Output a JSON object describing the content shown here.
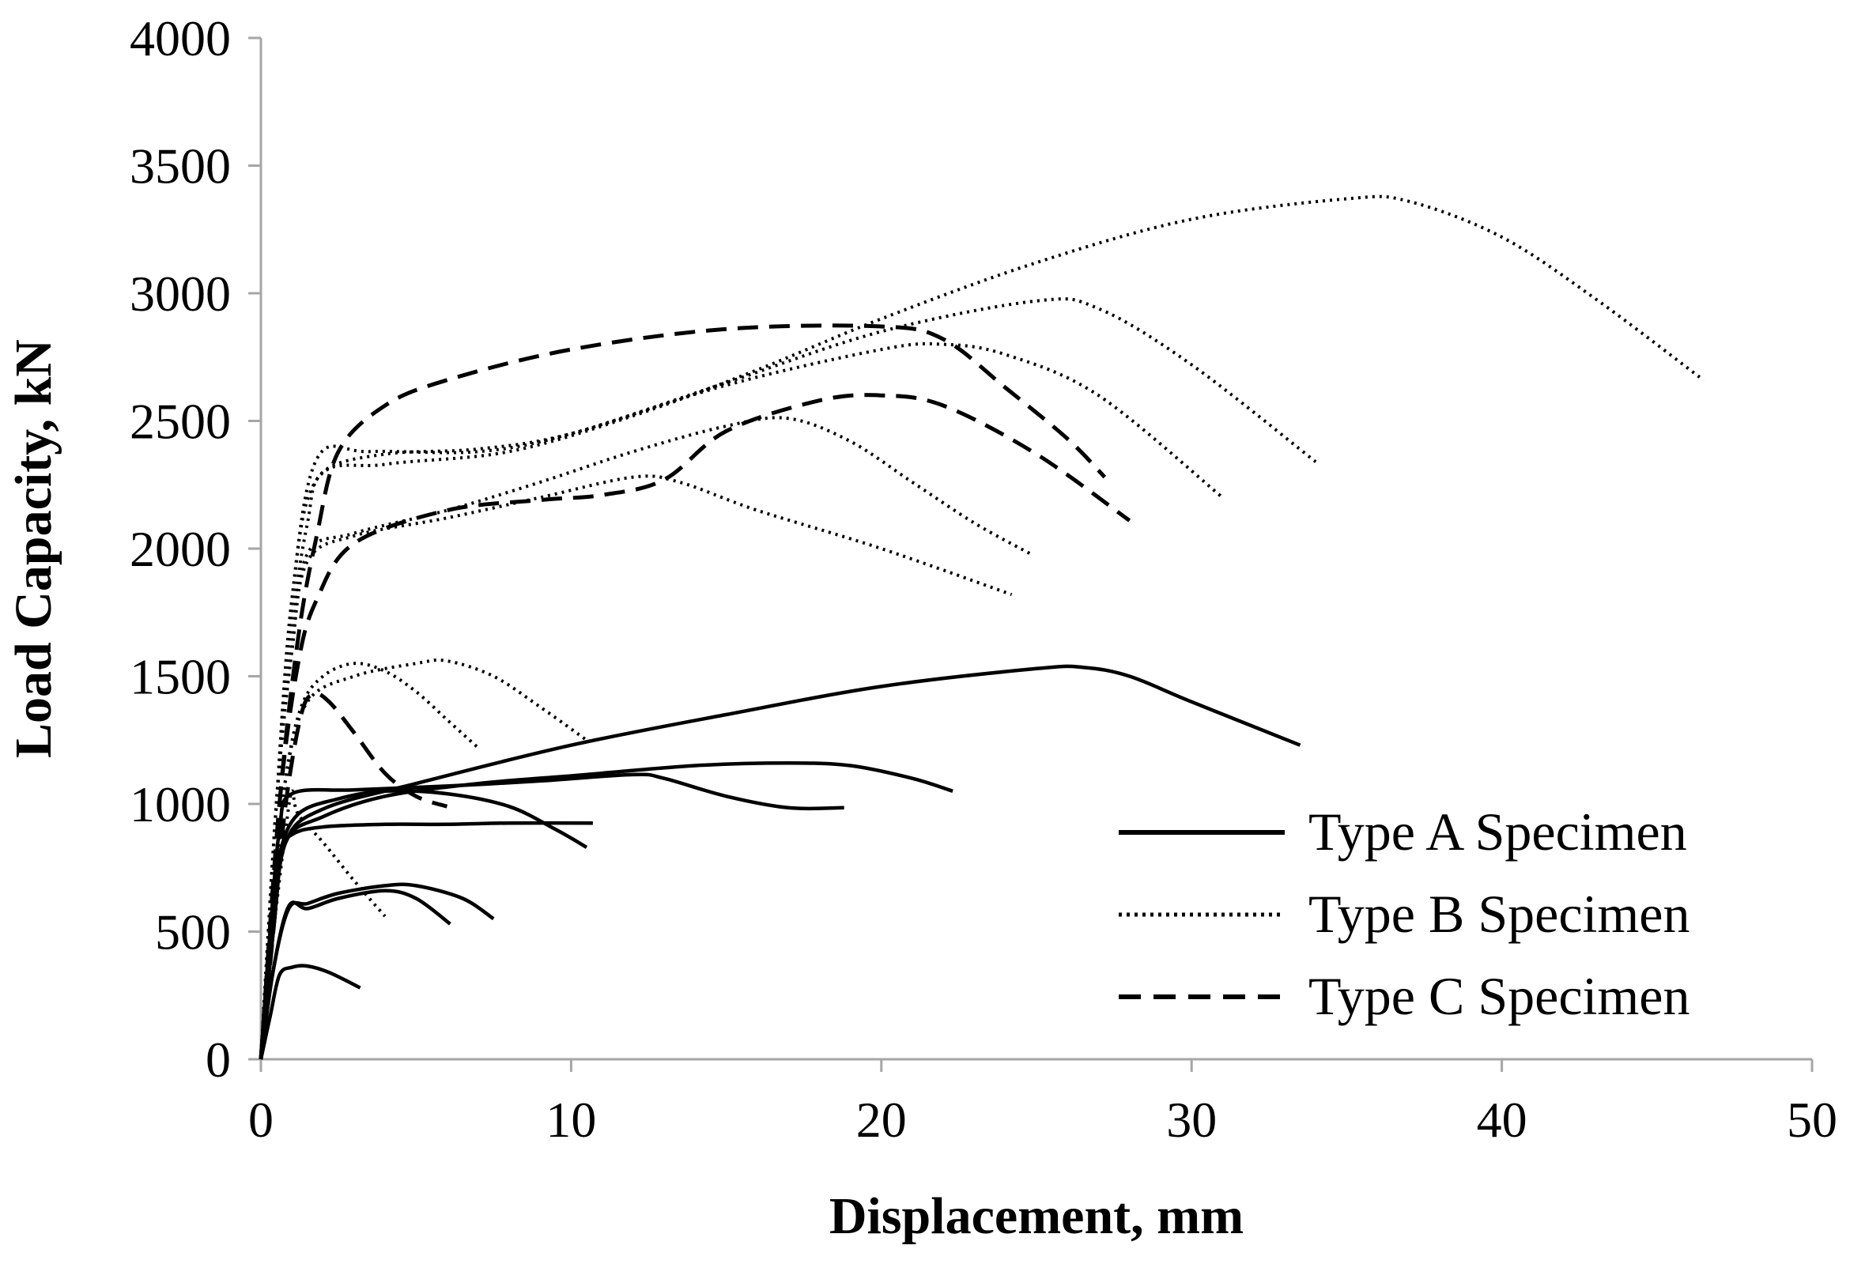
{
  "chart_data": {
    "type": "line",
    "title": "",
    "xlabel": "Displacement, mm",
    "ylabel": "Load Capacity, kN",
    "xlim": [
      0,
      50
    ],
    "ylim": [
      0,
      4000
    ],
    "xticks": [
      "0",
      "10",
      "20",
      "30",
      "40",
      "50"
    ],
    "yticks": [
      "0",
      "500",
      "1000",
      "1500",
      "2000",
      "2500",
      "3000",
      "3500",
      "4000"
    ],
    "grid": false,
    "legend_position": "right-bottom",
    "series_styles": {
      "Type A Specimen": "solid",
      "Type B Specimen": "dotted",
      "Type C Specimen": "dashed"
    },
    "series": [
      {
        "name": "Type A Specimen",
        "points": [
          [
            0,
            0
          ],
          [
            0.3,
            170
          ],
          [
            0.6,
            330
          ],
          [
            1.0,
            360
          ],
          [
            1.5,
            365
          ],
          [
            2.2,
            340
          ],
          [
            3.2,
            280
          ]
        ]
      },
      {
        "name": "Type A Specimen",
        "points": [
          [
            0,
            0
          ],
          [
            0.4,
            350
          ],
          [
            0.9,
            600
          ],
          [
            1.5,
            590
          ],
          [
            2.5,
            630
          ],
          [
            4.0,
            660
          ],
          [
            5.0,
            630
          ],
          [
            6.1,
            530
          ]
        ]
      },
      {
        "name": "Type A Specimen",
        "points": [
          [
            0,
            0
          ],
          [
            0.4,
            350
          ],
          [
            0.9,
            590
          ],
          [
            1.5,
            610
          ],
          [
            2.5,
            650
          ],
          [
            4.0,
            680
          ],
          [
            5.0,
            680
          ],
          [
            6.5,
            630
          ],
          [
            7.5,
            550
          ]
        ]
      },
      {
        "name": "Type A Specimen",
        "points": [
          [
            0,
            0
          ],
          [
            0.3,
            500
          ],
          [
            0.6,
            800
          ],
          [
            1.0,
            880
          ],
          [
            2.0,
            910
          ],
          [
            4.0,
            920
          ],
          [
            6.0,
            920
          ],
          [
            8.0,
            925
          ],
          [
            10.7,
            925
          ]
        ]
      },
      {
        "name": "Type A Specimen",
        "points": [
          [
            0,
            0
          ],
          [
            0.3,
            500
          ],
          [
            0.6,
            800
          ],
          [
            1.2,
            960
          ],
          [
            2.5,
            1020
          ],
          [
            4.0,
            1050
          ],
          [
            6.0,
            1040
          ],
          [
            8.0,
            990
          ],
          [
            9.5,
            900
          ],
          [
            10.5,
            830
          ]
        ]
      },
      {
        "name": "Type A Specimen",
        "points": [
          [
            0,
            0
          ],
          [
            0.3,
            500
          ],
          [
            0.6,
            900
          ],
          [
            1.0,
            1040
          ],
          [
            3.0,
            1055
          ],
          [
            6.0,
            1070
          ],
          [
            9.0,
            1090
          ],
          [
            12.0,
            1115
          ],
          [
            13.0,
            1100
          ],
          [
            15.0,
            1030
          ],
          [
            17.0,
            985
          ],
          [
            18.8,
            985
          ]
        ]
      },
      {
        "name": "Type A Specimen",
        "points": [
          [
            0,
            0
          ],
          [
            0.4,
            500
          ],
          [
            0.8,
            850
          ],
          [
            2.0,
            950
          ],
          [
            4.0,
            1030
          ],
          [
            7.0,
            1080
          ],
          [
            10.0,
            1110
          ],
          [
            14.0,
            1150
          ],
          [
            17.0,
            1160
          ],
          [
            19.0,
            1150
          ],
          [
            21.0,
            1100
          ],
          [
            22.3,
            1050
          ]
        ]
      },
      {
        "name": "Type A Specimen",
        "points": [
          [
            0,
            0
          ],
          [
            0.4,
            500
          ],
          [
            0.8,
            850
          ],
          [
            2.0,
            980
          ],
          [
            5.0,
            1080
          ],
          [
            10.0,
            1230
          ],
          [
            15.0,
            1350
          ],
          [
            20.0,
            1460
          ],
          [
            25.0,
            1530
          ],
          [
            26.5,
            1535
          ],
          [
            28.0,
            1500
          ],
          [
            30.0,
            1400
          ],
          [
            33.5,
            1230
          ]
        ]
      },
      {
        "name": "Type B Specimen",
        "points": [
          [
            0,
            0
          ],
          [
            0.2,
            300
          ],
          [
            0.5,
            600
          ],
          [
            0.8,
            900
          ],
          [
            1.0,
            1050
          ],
          [
            1.2,
            960
          ],
          [
            2.0,
            850
          ],
          [
            3.0,
            700
          ],
          [
            4.0,
            560
          ]
        ]
      },
      {
        "name": "Type B Specimen",
        "points": [
          [
            0,
            0
          ],
          [
            0.4,
            600
          ],
          [
            0.8,
            1100
          ],
          [
            1.3,
            1380
          ],
          [
            2.0,
            1500
          ],
          [
            3.0,
            1550
          ],
          [
            4.0,
            1520
          ],
          [
            5.0,
            1440
          ],
          [
            6.0,
            1330
          ],
          [
            7.0,
            1220
          ]
        ]
      },
      {
        "name": "Type B Specimen",
        "points": [
          [
            0,
            0
          ],
          [
            0.4,
            600
          ],
          [
            0.8,
            1100
          ],
          [
            1.5,
            1400
          ],
          [
            3.0,
            1500
          ],
          [
            5.0,
            1550
          ],
          [
            6.0,
            1560
          ],
          [
            7.5,
            1500
          ],
          [
            9.0,
            1380
          ],
          [
            10.5,
            1250
          ]
        ]
      },
      {
        "name": "Type B Specimen",
        "points": [
          [
            0,
            0
          ],
          [
            0.5,
            1000
          ],
          [
            1.0,
            1600
          ],
          [
            1.5,
            1950
          ],
          [
            3.0,
            2050
          ],
          [
            6.0,
            2120
          ],
          [
            9.0,
            2200
          ],
          [
            12.0,
            2280
          ],
          [
            13.5,
            2260
          ],
          [
            16.0,
            2150
          ],
          [
            20.0,
            2000
          ],
          [
            24.2,
            1820
          ]
        ]
      },
      {
        "name": "Type B Specimen",
        "points": [
          [
            0,
            0
          ],
          [
            0.5,
            1000
          ],
          [
            1.0,
            1600
          ],
          [
            1.5,
            1980
          ],
          [
            3.0,
            2060
          ],
          [
            6.0,
            2150
          ],
          [
            9.0,
            2260
          ],
          [
            12.0,
            2380
          ],
          [
            15.0,
            2480
          ],
          [
            17.0,
            2510
          ],
          [
            19.0,
            2420
          ],
          [
            21.0,
            2260
          ],
          [
            23.0,
            2100
          ],
          [
            24.8,
            1980
          ]
        ]
      },
      {
        "name": "Type B Specimen",
        "points": [
          [
            0,
            0
          ],
          [
            0.5,
            1000
          ],
          [
            1.0,
            1700
          ],
          [
            1.5,
            2100
          ],
          [
            2.0,
            2300
          ],
          [
            4.0,
            2370
          ],
          [
            7.0,
            2390
          ],
          [
            10.0,
            2450
          ],
          [
            15.0,
            2640
          ],
          [
            20.0,
            2780
          ],
          [
            22.0,
            2800
          ],
          [
            24.0,
            2760
          ],
          [
            27.0,
            2600
          ],
          [
            31.0,
            2200
          ]
        ]
      },
      {
        "name": "Type B Specimen",
        "points": [
          [
            0,
            0
          ],
          [
            0.5,
            1000
          ],
          [
            1.0,
            1800
          ],
          [
            1.8,
            2350
          ],
          [
            3.5,
            2380
          ],
          [
            7.0,
            2380
          ],
          [
            10.0,
            2450
          ],
          [
            15.0,
            2650
          ],
          [
            20.0,
            2850
          ],
          [
            25.0,
            2970
          ],
          [
            27.0,
            2940
          ],
          [
            30.0,
            2720
          ],
          [
            34.0,
            2340
          ]
        ]
      },
      {
        "name": "Type B Specimen",
        "points": [
          [
            0,
            0
          ],
          [
            0.5,
            1000
          ],
          [
            1.0,
            1800
          ],
          [
            1.8,
            2270
          ],
          [
            4.0,
            2330
          ],
          [
            8.0,
            2380
          ],
          [
            12.0,
            2520
          ],
          [
            16.0,
            2700
          ],
          [
            20.0,
            2900
          ],
          [
            25.0,
            3120
          ],
          [
            30.0,
            3290
          ],
          [
            35.0,
            3370
          ],
          [
            37.0,
            3360
          ],
          [
            40.0,
            3220
          ],
          [
            43.0,
            2980
          ],
          [
            46.5,
            2660
          ]
        ]
      },
      {
        "name": "Type C Specimen",
        "points": [
          [
            0,
            0
          ],
          [
            0.4,
            500
          ],
          [
            0.8,
            1000
          ],
          [
            1.3,
            1350
          ],
          [
            1.7,
            1430
          ],
          [
            2.2,
            1400
          ],
          [
            3.0,
            1280
          ],
          [
            4.0,
            1120
          ],
          [
            5.0,
            1030
          ],
          [
            6.0,
            990
          ]
        ]
      },
      {
        "name": "Type C Specimen",
        "points": [
          [
            0,
            0
          ],
          [
            0.6,
            1000
          ],
          [
            1.2,
            1550
          ],
          [
            1.8,
            1800
          ],
          [
            3.0,
            2020
          ],
          [
            6.0,
            2150
          ],
          [
            9.0,
            2190
          ],
          [
            11.0,
            2210
          ],
          [
            13.0,
            2270
          ],
          [
            15.0,
            2460
          ],
          [
            18.0,
            2580
          ],
          [
            20.0,
            2600
          ],
          [
            22.0,
            2560
          ],
          [
            25.0,
            2370
          ],
          [
            28.0,
            2110
          ]
        ]
      },
      {
        "name": "Type C Specimen",
        "points": [
          [
            0,
            0
          ],
          [
            0.6,
            1000
          ],
          [
            1.2,
            1650
          ],
          [
            1.8,
            2050
          ],
          [
            2.5,
            2380
          ],
          [
            4.0,
            2560
          ],
          [
            6.0,
            2660
          ],
          [
            10.0,
            2780
          ],
          [
            15.0,
            2860
          ],
          [
            20.0,
            2870
          ],
          [
            22.0,
            2820
          ],
          [
            24.0,
            2630
          ],
          [
            26.0,
            2430
          ],
          [
            27.2,
            2280
          ]
        ]
      }
    ],
    "legend": [
      "Type A Specimen",
      "Type B Specimen",
      "Type C Specimen"
    ]
  }
}
